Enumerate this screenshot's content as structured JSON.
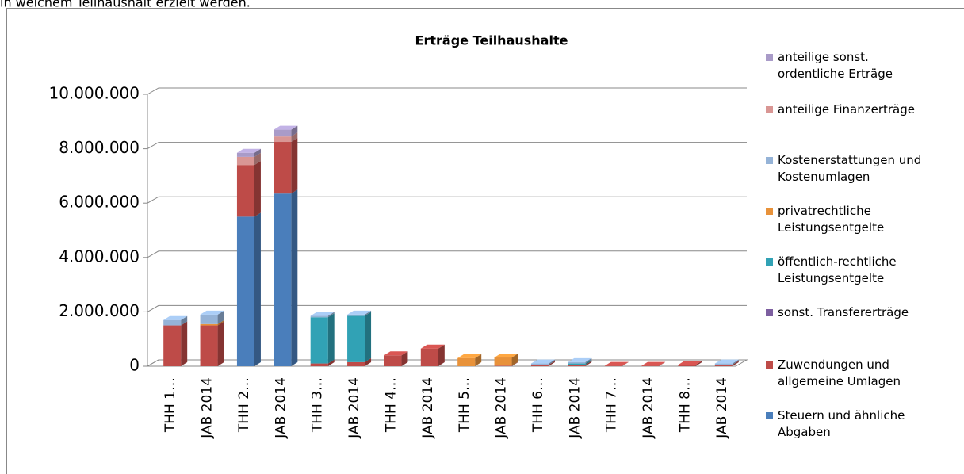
{
  "intro": "in welchem Teilhaushalt erzielt werden.",
  "chart_data": {
    "type": "stacked_bar_3d",
    "title": "Erträge Teilhaushalte",
    "categories": [
      "THH 1…",
      "JAB 2014",
      "THH 2…",
      "JAB 2014",
      "THH 3…",
      "JAB 2014",
      "THH 4…",
      "JAB 2014",
      "THH 5…",
      "JAB 2014",
      "THH 6…",
      "JAB 2014",
      "THH 7…",
      "JAB 2014",
      "THH 8…",
      "JAB 2014"
    ],
    "series": [
      {
        "name": "Steuern und ähnliche Abgaben",
        "color": "#4a7ebb",
        "values": [
          0,
          0,
          5500000,
          6350000,
          0,
          0,
          0,
          0,
          0,
          0,
          0,
          0,
          0,
          0,
          0,
          0
        ]
      },
      {
        "name": "Zuwendungen und allgemeine Umlagen",
        "color": "#be4b48",
        "values": [
          1500000,
          1500000,
          1900000,
          1900000,
          100000,
          150000,
          400000,
          650000,
          0,
          20000,
          50000,
          50000,
          10000,
          10000,
          50000,
          50000
        ]
      },
      {
        "name": "sonst. Transfererträge",
        "color": "#7d5fa0",
        "values": [
          0,
          0,
          0,
          0,
          0,
          0,
          0,
          0,
          0,
          0,
          0,
          0,
          0,
          0,
          0,
          0
        ]
      },
      {
        "name": "öffentlich-rechtliche Leistungsentgelte",
        "color": "#31a2b5",
        "values": [
          0,
          0,
          0,
          0,
          1700000,
          1700000,
          0,
          0,
          0,
          0,
          0,
          50000,
          0,
          0,
          0,
          0
        ]
      },
      {
        "name": "privatrechtliche Leistungsentgelte",
        "color": "#e8923a",
        "values": [
          0,
          50000,
          0,
          0,
          0,
          0,
          0,
          0,
          300000,
          300000,
          0,
          0,
          0,
          0,
          0,
          0
        ]
      },
      {
        "name": "Kostenerstattungen und Kostenumlagen",
        "color": "#95b3d7",
        "values": [
          200000,
          350000,
          0,
          0,
          50000,
          50000,
          0,
          0,
          0,
          0,
          50000,
          50000,
          0,
          0,
          0,
          50000
        ]
      },
      {
        "name": "anteilige Finanzerträge",
        "color": "#d99694",
        "values": [
          0,
          0,
          300000,
          200000,
          0,
          0,
          0,
          0,
          0,
          0,
          0,
          0,
          0,
          0,
          0,
          0
        ]
      },
      {
        "name": "anteilige sonst. ordentliche Erträge",
        "color": "#a99bc8",
        "values": [
          0,
          0,
          150000,
          250000,
          0,
          0,
          0,
          0,
          0,
          0,
          0,
          0,
          0,
          0,
          0,
          0
        ]
      }
    ],
    "ylim": [
      0,
      10000000
    ],
    "yticks": [
      0,
      {
        "value": 2000000,
        "label": "2.000.000"
      },
      {
        "value": 4000000,
        "label": "4.000.000"
      },
      {
        "value": 6000000,
        "label": "6.000.000"
      },
      {
        "value": 8000000,
        "label": "8.000.000"
      },
      {
        "value": 10000000,
        "label": "10.000.000"
      }
    ],
    "grid": true,
    "legend": "right"
  }
}
